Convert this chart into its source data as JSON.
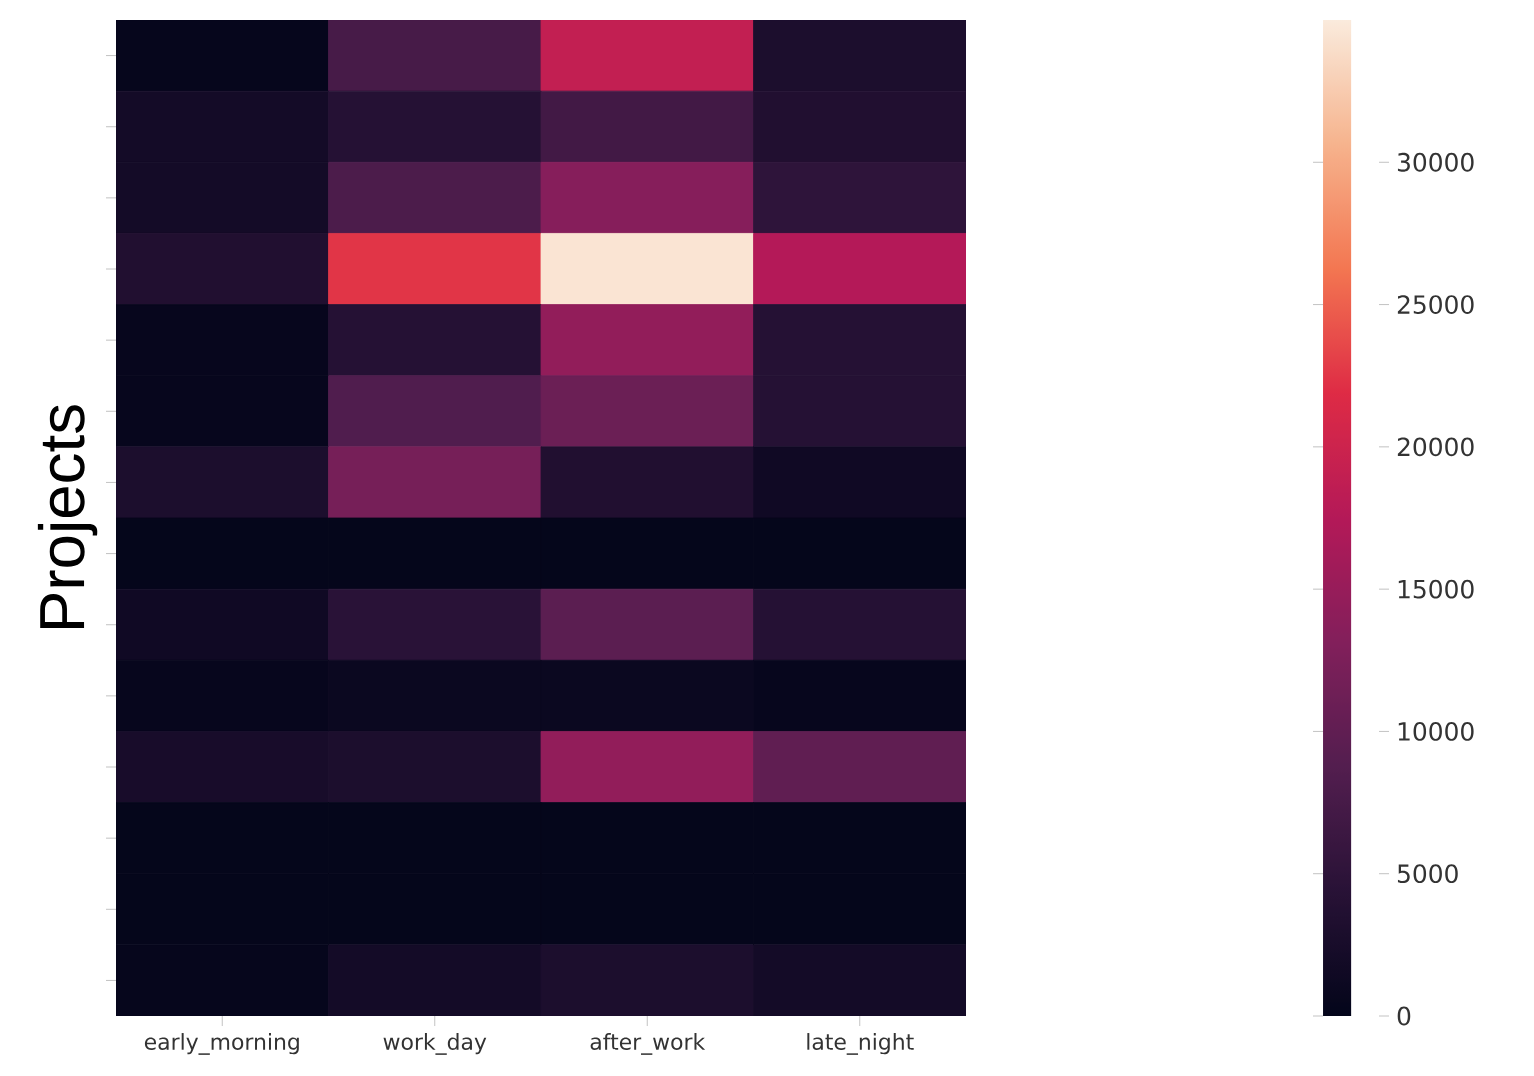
{
  "chart_data": {
    "type": "heatmap",
    "ylabel": "Projects",
    "categories": [
      "early_morning",
      "work_day",
      "after_work",
      "late_night"
    ],
    "y_categories": [
      null,
      null,
      null,
      null,
      null,
      null,
      null,
      null,
      null,
      null,
      null,
      null,
      null,
      null
    ],
    "cells": [
      [
        300,
        7500,
        19000,
        3000
      ],
      [
        2000,
        4000,
        7000,
        3500
      ],
      [
        2000,
        8000,
        13500,
        5000
      ],
      [
        3500,
        22500,
        34500,
        17500
      ],
      [
        500,
        4000,
        14500,
        4000
      ],
      [
        500,
        8500,
        11000,
        4000
      ],
      [
        3000,
        12000,
        3500,
        1500
      ],
      [
        200,
        200,
        200,
        200
      ],
      [
        1500,
        4500,
        9500,
        4000
      ],
      [
        500,
        1000,
        1000,
        500
      ],
      [
        2500,
        3000,
        14500,
        10000
      ],
      [
        200,
        200,
        200,
        200
      ],
      [
        200,
        200,
        200,
        200
      ],
      [
        300,
        2000,
        3000,
        2000
      ]
    ],
    "clim": [
      0,
      35000
    ],
    "cticks": [
      0,
      5000,
      10000,
      15000,
      20000,
      25000,
      30000
    ]
  }
}
